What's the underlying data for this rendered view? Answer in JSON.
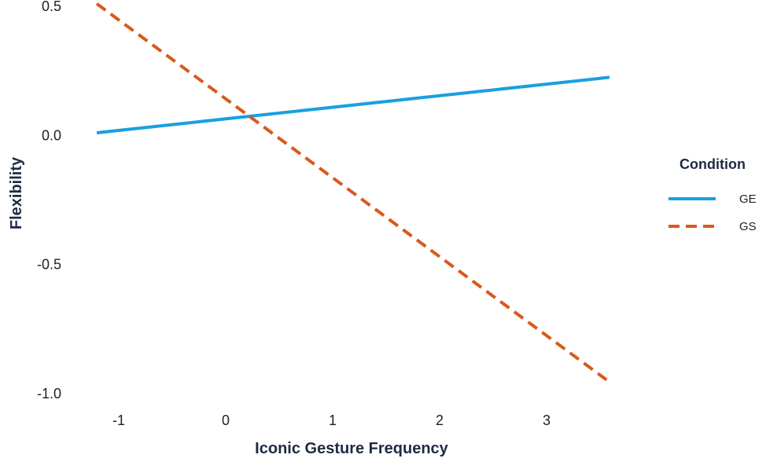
{
  "chart_data": {
    "type": "line",
    "title": "",
    "xlabel": "Iconic Gesture Frequency",
    "ylabel": "Flexibility",
    "xlim": [
      -1.2,
      3.6
    ],
    "ylim": [
      -1.0,
      0.5
    ],
    "x_ticks": [
      -1,
      0,
      1,
      2,
      3
    ],
    "x_tick_labels": [
      "-1",
      "0",
      "1",
      "2",
      "3"
    ],
    "y_ticks": [
      0.5,
      0.0,
      -0.5,
      -1.0
    ],
    "y_tick_labels": [
      "0.5",
      "0.0",
      "-0.5",
      "-1.0"
    ],
    "grid": false,
    "legend": {
      "title": "Condition",
      "placement": "right"
    },
    "series": [
      {
        "name": "GE",
        "style": "solid",
        "color": "#1a9fe0",
        "x": [
          -1.2,
          3.6
        ],
        "y": [
          0.01,
          0.225
        ]
      },
      {
        "name": "GS",
        "style": "dashed",
        "color": "#d9591b",
        "x": [
          -1.2,
          3.6
        ],
        "y": [
          0.51,
          -0.955
        ]
      }
    ]
  }
}
